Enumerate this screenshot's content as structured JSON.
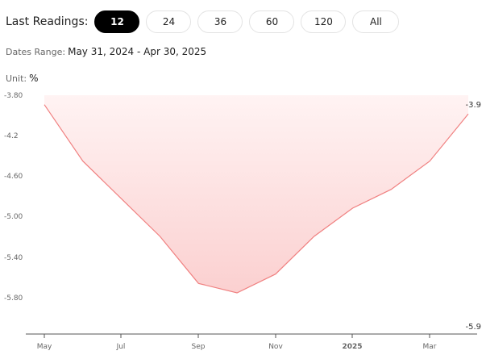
{
  "header": {
    "last_readings_label": "Last Readings:",
    "range_buttons": [
      {
        "label": "12",
        "active": true
      },
      {
        "label": "24",
        "active": false
      },
      {
        "label": "36",
        "active": false
      },
      {
        "label": "60",
        "active": false
      },
      {
        "label": "120",
        "active": false
      },
      {
        "label": "All",
        "active": false
      }
    ]
  },
  "dates_range": {
    "label": "Dates Range:",
    "value": "May 31, 2024 - Apr 30, 2025"
  },
  "unit": {
    "label": "Unit:",
    "value": "%"
  },
  "colors": {
    "line": "#f08080",
    "fill_top": "#fff3f3",
    "fill_bottom": "#fbd0d0",
    "axis": "#555555"
  },
  "chart_data": {
    "type": "area",
    "x": [
      "2024-05-31",
      "2024-06-30",
      "2024-07-31",
      "2024-08-31",
      "2024-09-30",
      "2024-10-31",
      "2024-11-30",
      "2024-12-31",
      "2025-01-31",
      "2025-02-28",
      "2025-03-31",
      "2025-04-30"
    ],
    "series": [
      {
        "values": [
          -3.9,
          -4.5,
          -4.9,
          -5.3,
          -5.8,
          -5.9,
          -5.7,
          -5.3,
          -5.0,
          -4.8,
          -4.5,
          -4.0
        ]
      }
    ],
    "ylim": [
      -6.2,
      -3.8
    ],
    "y_ticks": [
      "-3.80",
      "-4.2",
      "-4.60",
      "-5.00",
      "-5.40",
      "-5.80"
    ],
    "x_ticks": [
      "May",
      "Jul",
      "Sep",
      "Nov",
      "2025",
      "Mar"
    ],
    "max_label": "-3.9",
    "min_label": "-5.9"
  }
}
